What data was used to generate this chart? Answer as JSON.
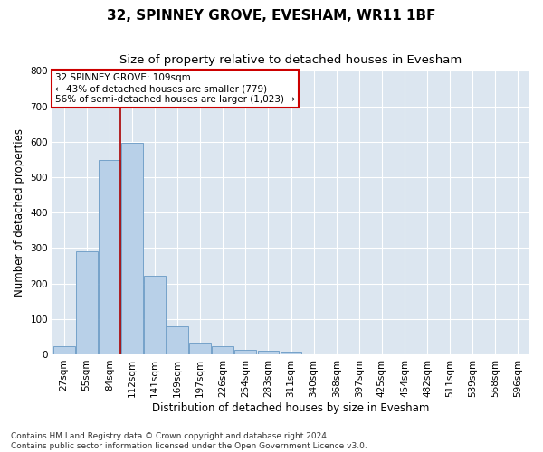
{
  "title": "32, SPINNEY GROVE, EVESHAM, WR11 1BF",
  "subtitle": "Size of property relative to detached houses in Evesham",
  "xlabel": "Distribution of detached houses by size in Evesham",
  "ylabel": "Number of detached properties",
  "bar_color": "#b8d0e8",
  "bar_edge_color": "#6899c4",
  "background_color": "#dce6f0",
  "grid_color": "#ffffff",
  "categories": [
    "27sqm",
    "55sqm",
    "84sqm",
    "112sqm",
    "141sqm",
    "169sqm",
    "197sqm",
    "226sqm",
    "254sqm",
    "283sqm",
    "311sqm",
    "340sqm",
    "368sqm",
    "397sqm",
    "425sqm",
    "454sqm",
    "482sqm",
    "511sqm",
    "539sqm",
    "568sqm",
    "596sqm"
  ],
  "values": [
    22,
    290,
    548,
    598,
    222,
    80,
    33,
    22,
    13,
    10,
    8,
    0,
    0,
    0,
    0,
    0,
    0,
    0,
    0,
    0,
    0
  ],
  "ylim": [
    0,
    800
  ],
  "yticks": [
    0,
    100,
    200,
    300,
    400,
    500,
    600,
    700,
    800
  ],
  "property_line_color": "#aa0000",
  "property_line_index": 2.5,
  "annotation_box_text": "32 SPINNEY GROVE: 109sqm\n← 43% of detached houses are smaller (779)\n56% of semi-detached houses are larger (1,023) →",
  "annotation_box_color": "#cc0000",
  "footnote": "Contains HM Land Registry data © Crown copyright and database right 2024.\nContains public sector information licensed under the Open Government Licence v3.0.",
  "title_fontsize": 11,
  "subtitle_fontsize": 9.5,
  "axis_label_fontsize": 8.5,
  "tick_fontsize": 7.5,
  "annotation_fontsize": 7.5,
  "footnote_fontsize": 6.5
}
